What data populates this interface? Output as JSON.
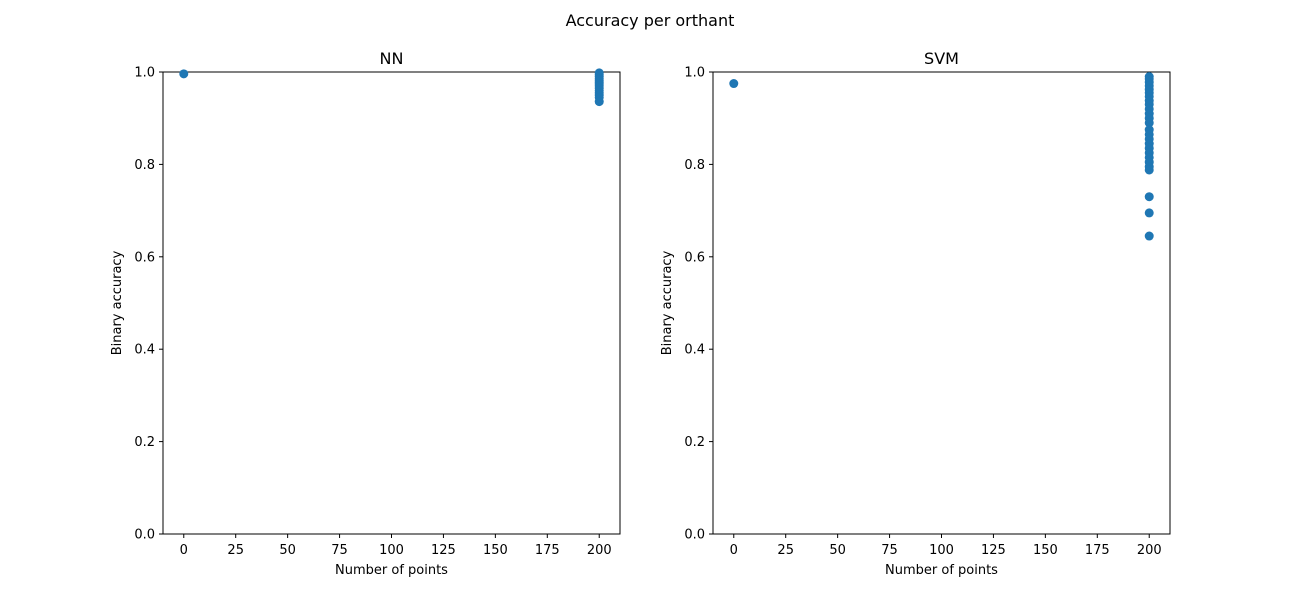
{
  "figure": {
    "suptitle": "Accuracy per orthant"
  },
  "chart_data": [
    {
      "type": "scatter",
      "title": "NN",
      "xlabel": "Number of points",
      "ylabel": "Binary accuracy",
      "xlim": [
        -10,
        210
      ],
      "ylim": [
        0,
        1.0
      ],
      "xticks": [
        0,
        25,
        50,
        75,
        100,
        125,
        150,
        175,
        200
      ],
      "yticks": [
        0.0,
        0.2,
        0.4,
        0.6,
        0.8,
        1.0
      ],
      "xtick_labels": [
        "0",
        "25",
        "50",
        "75",
        "100",
        "125",
        "150",
        "175",
        "200"
      ],
      "ytick_labels": [
        "0.0",
        "0.2",
        "0.4",
        "0.6",
        "0.8",
        "1.0"
      ],
      "grid": false,
      "marker_color": "#1f77b4",
      "points": [
        {
          "x": 0,
          "y": 0.996
        },
        {
          "x": 200,
          "y": 0.998
        },
        {
          "x": 200,
          "y": 0.994
        },
        {
          "x": 200,
          "y": 0.99
        },
        {
          "x": 200,
          "y": 0.986
        },
        {
          "x": 200,
          "y": 0.982
        },
        {
          "x": 200,
          "y": 0.978
        },
        {
          "x": 200,
          "y": 0.974
        },
        {
          "x": 200,
          "y": 0.97
        },
        {
          "x": 200,
          "y": 0.965
        },
        {
          "x": 200,
          "y": 0.96
        },
        {
          "x": 200,
          "y": 0.955
        },
        {
          "x": 200,
          "y": 0.95
        },
        {
          "x": 200,
          "y": 0.945
        },
        {
          "x": 200,
          "y": 0.936
        }
      ]
    },
    {
      "type": "scatter",
      "title": "SVM",
      "xlabel": "Number of points",
      "ylabel": "Binary accuracy",
      "xlim": [
        -10,
        210
      ],
      "ylim": [
        0,
        1.0
      ],
      "xticks": [
        0,
        25,
        50,
        75,
        100,
        125,
        150,
        175,
        200
      ],
      "yticks": [
        0.0,
        0.2,
        0.4,
        0.6,
        0.8,
        1.0
      ],
      "xtick_labels": [
        "0",
        "25",
        "50",
        "75",
        "100",
        "125",
        "150",
        "175",
        "200"
      ],
      "ytick_labels": [
        "0.0",
        "0.2",
        "0.4",
        "0.6",
        "0.8",
        "1.0"
      ],
      "grid": false,
      "marker_color": "#1f77b4",
      "points": [
        {
          "x": 0,
          "y": 0.975
        },
        {
          "x": 200,
          "y": 0.99
        },
        {
          "x": 200,
          "y": 0.985
        },
        {
          "x": 200,
          "y": 0.978
        },
        {
          "x": 200,
          "y": 0.97
        },
        {
          "x": 200,
          "y": 0.962
        },
        {
          "x": 200,
          "y": 0.955
        },
        {
          "x": 200,
          "y": 0.947
        },
        {
          "x": 200,
          "y": 0.938
        },
        {
          "x": 200,
          "y": 0.93
        },
        {
          "x": 200,
          "y": 0.92
        },
        {
          "x": 200,
          "y": 0.91
        },
        {
          "x": 200,
          "y": 0.9
        },
        {
          "x": 200,
          "y": 0.89
        },
        {
          "x": 200,
          "y": 0.875
        },
        {
          "x": 200,
          "y": 0.865
        },
        {
          "x": 200,
          "y": 0.855
        },
        {
          "x": 200,
          "y": 0.845
        },
        {
          "x": 200,
          "y": 0.835
        },
        {
          "x": 200,
          "y": 0.825
        },
        {
          "x": 200,
          "y": 0.815
        },
        {
          "x": 200,
          "y": 0.805
        },
        {
          "x": 200,
          "y": 0.795
        },
        {
          "x": 200,
          "y": 0.788
        },
        {
          "x": 200,
          "y": 0.73
        },
        {
          "x": 200,
          "y": 0.695
        },
        {
          "x": 200,
          "y": 0.645
        }
      ]
    }
  ]
}
